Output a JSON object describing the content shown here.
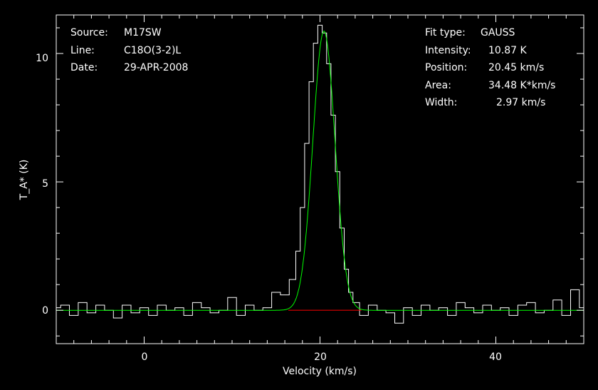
{
  "header": {
    "source_label": "Source:",
    "source_value": "M17SW",
    "line_label": "Line:",
    "line_value": "C18O(3-2)L",
    "date_label": "Date:",
    "date_value": "29-APR-2008"
  },
  "fit": {
    "type_label": "Fit type:",
    "type_value": "GAUSS",
    "intensity_label": "Intensity:",
    "intensity_value": "10.87 K",
    "position_label": "Position:",
    "position_value": "20.45 km/s",
    "area_label": "Area:",
    "area_value": "34.48 K*km/s",
    "width_label": "Width:",
    "width_value": "2.97 km/s"
  },
  "colors": {
    "background": "#000000",
    "axes": "#ffffff",
    "spectrum": "#ffffff",
    "fit": "#00ff00",
    "baseline": "#ff0000"
  },
  "chart_data": {
    "type": "line",
    "xlabel": "Velocity (km/s)",
    "ylabel": "T_A* (K)",
    "xlim": [
      -10,
      50
    ],
    "ylim": [
      -1.3,
      11.5
    ],
    "xticks": [
      0,
      20,
      40
    ],
    "yticks": [
      0,
      5,
      10
    ],
    "xtick_labels": [
      "0",
      "20",
      "40"
    ],
    "ytick_labels": [
      "0",
      "5",
      "10"
    ],
    "series": [
      {
        "style": "histogram",
        "x": [
          -10,
          -9,
          -8,
          -7,
          -6,
          -5,
          -4,
          -3,
          -2,
          -1,
          0,
          1,
          2,
          3,
          4,
          5,
          6,
          7,
          8,
          9,
          10,
          11,
          12,
          13,
          14,
          15,
          16,
          17,
          17.5,
          18,
          18.5,
          19,
          19.5,
          20,
          20.5,
          21,
          21.5,
          22,
          22.5,
          23,
          23.5,
          24,
          25,
          26,
          27,
          28,
          29,
          30,
          31,
          32,
          33,
          34,
          35,
          36,
          37,
          38,
          39,
          40,
          41,
          42,
          43,
          44,
          45,
          46,
          47,
          48,
          49,
          50
        ],
        "y": [
          0.1,
          0.2,
          -0.2,
          0.3,
          -0.1,
          0.2,
          0.0,
          -0.3,
          0.2,
          -0.1,
          0.1,
          -0.2,
          0.2,
          0.0,
          0.1,
          -0.2,
          0.3,
          0.1,
          -0.1,
          0.0,
          0.5,
          -0.2,
          0.2,
          0.0,
          0.1,
          0.7,
          0.6,
          1.2,
          2.3,
          4.0,
          6.5,
          8.9,
          10.4,
          11.1,
          10.8,
          9.6,
          7.6,
          5.4,
          3.2,
          1.6,
          0.7,
          0.3,
          -0.2,
          0.2,
          0.0,
          -0.1,
          -0.5,
          0.1,
          -0.2,
          0.2,
          0.0,
          0.1,
          -0.2,
          0.3,
          0.1,
          -0.1,
          0.2,
          0.0,
          0.1,
          -0.2,
          0.2,
          0.3,
          -0.1,
          0.0,
          0.4,
          -0.2,
          0.8,
          0.1
        ]
      },
      {
        "name": "GAUSS",
        "style": "fit",
        "amplitude": 10.87,
        "center": 20.45,
        "fwhm": 2.97
      }
    ],
    "baseline": {
      "y": 0,
      "x_range": [
        16.4,
        24.7
      ]
    },
    "grid": false
  }
}
